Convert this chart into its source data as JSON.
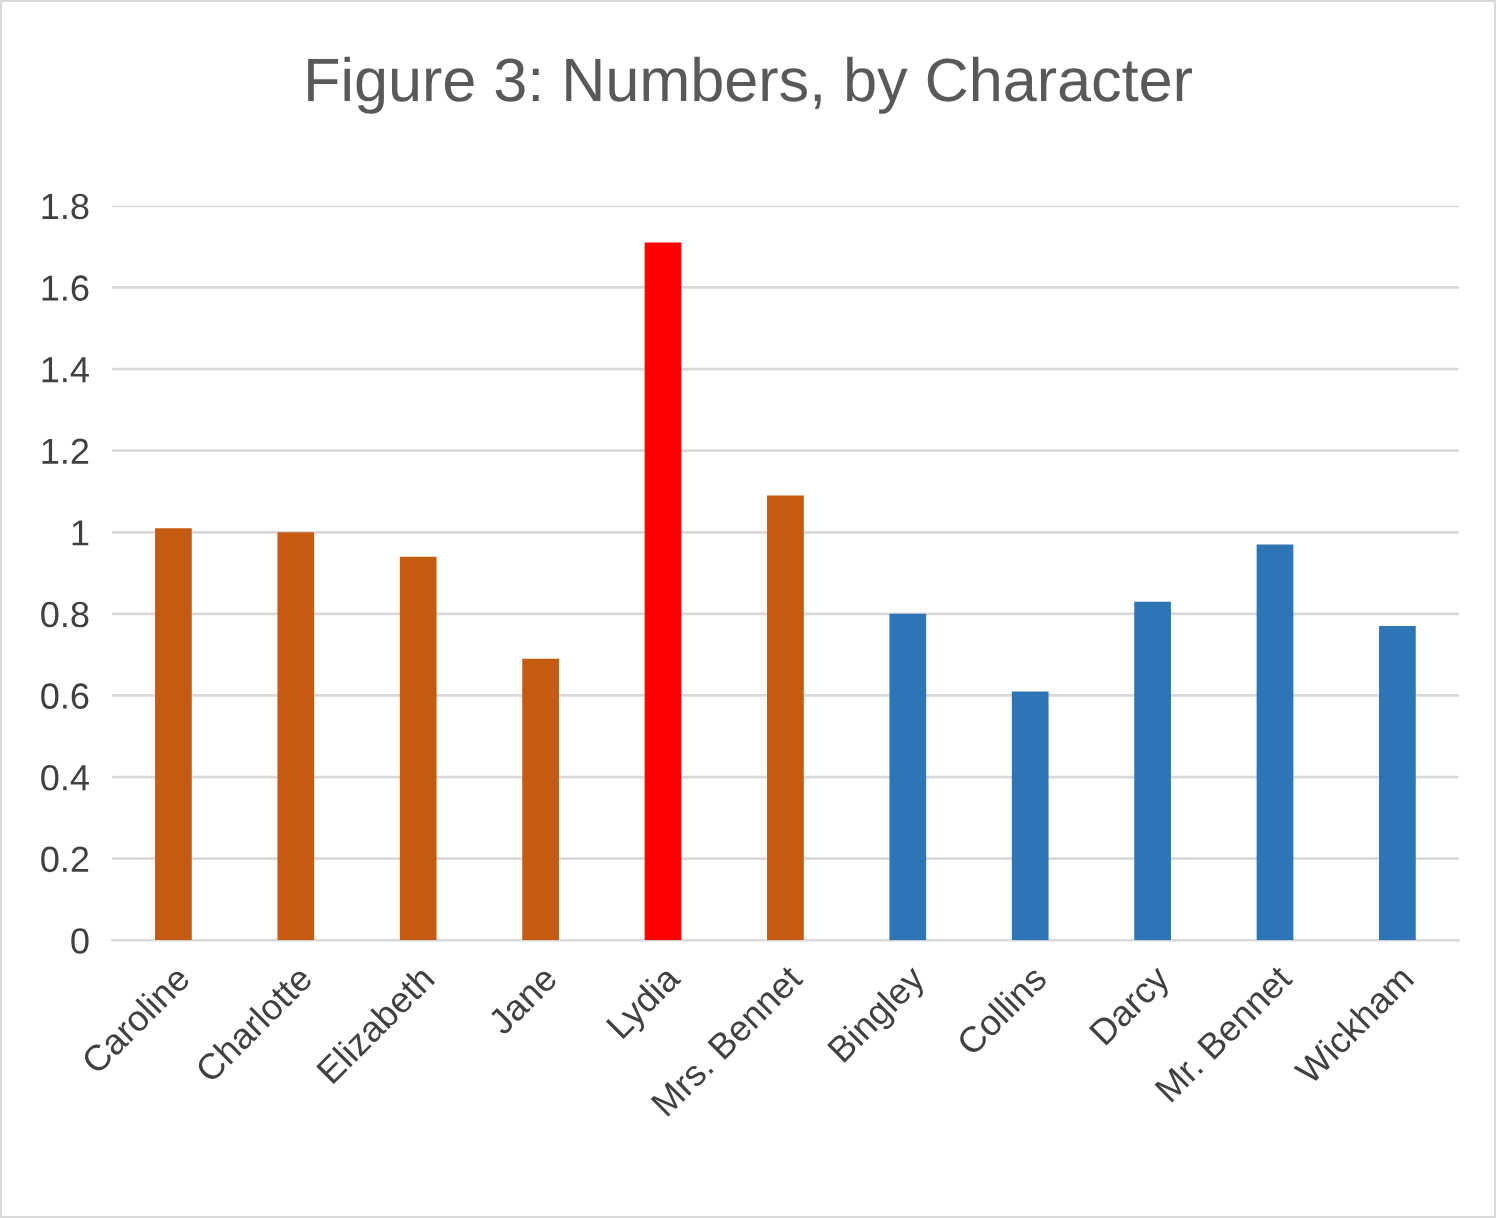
{
  "chart_data": {
    "type": "bar",
    "title": "Figure 3: Numbers, by Character",
    "categories": [
      "Caroline",
      "Charlotte",
      "Elizabeth",
      "Jane",
      "Lydia",
      "Mrs. Bennet",
      "Bingley",
      "Collins",
      "Darcy",
      "Mr. Bennet",
      "Wickham"
    ],
    "values": [
      1.01,
      1.0,
      0.94,
      0.69,
      1.71,
      1.09,
      0.8,
      0.61,
      0.83,
      0.97,
      0.77
    ],
    "colors": [
      "#c55a11",
      "#c55a11",
      "#c55a11",
      "#c55a11",
      "#ff0000",
      "#c55a11",
      "#2e75b6",
      "#2e75b6",
      "#2e75b6",
      "#2e75b6",
      "#2e75b6"
    ],
    "ylim": [
      0,
      1.8
    ],
    "yticks": [
      0,
      {
        "value": 0.2,
        "label": "0.2"
      },
      {
        "value": 0.4,
        "label": "0.4"
      },
      {
        "value": 0.6,
        "label": "0.6"
      },
      {
        "value": 0.8,
        "label": "0.8"
      },
      1,
      {
        "value": 1.2,
        "label": "1.2"
      },
      {
        "value": 1.4,
        "label": "1.4"
      },
      {
        "value": 1.6,
        "label": "1.6"
      },
      {
        "value": 1.8,
        "label": "1.8"
      }
    ],
    "grid": "y"
  }
}
